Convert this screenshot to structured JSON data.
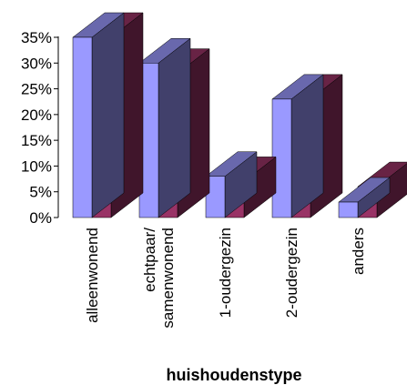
{
  "chart_data": {
    "type": "bar",
    "style": "3d-clustered",
    "categories": [
      [
        "alleenwonend"
      ],
      [
        "echtpaar/",
        "samenwonend"
      ],
      [
        "1-oudergezin"
      ],
      [
        "2-oudergezin"
      ],
      [
        "anders"
      ]
    ],
    "series": [
      {
        "color": "#9a99ff",
        "values": [
          35,
          30,
          8,
          23,
          3
        ]
      },
      {
        "color": "#993366",
        "values": [
          35,
          28,
          7,
          23,
          6
        ]
      }
    ],
    "ylim": [
      0,
      35
    ],
    "yticks": [
      0,
      5,
      10,
      15,
      20,
      25,
      30,
      35
    ],
    "ytick_labels": [
      "0%",
      "5%",
      "10%",
      "15%",
      "20%",
      "25%",
      "30%",
      "35%"
    ],
    "xlabel": "huishoudenstype",
    "ylabel": "",
    "grid": false,
    "legend": "none"
  }
}
